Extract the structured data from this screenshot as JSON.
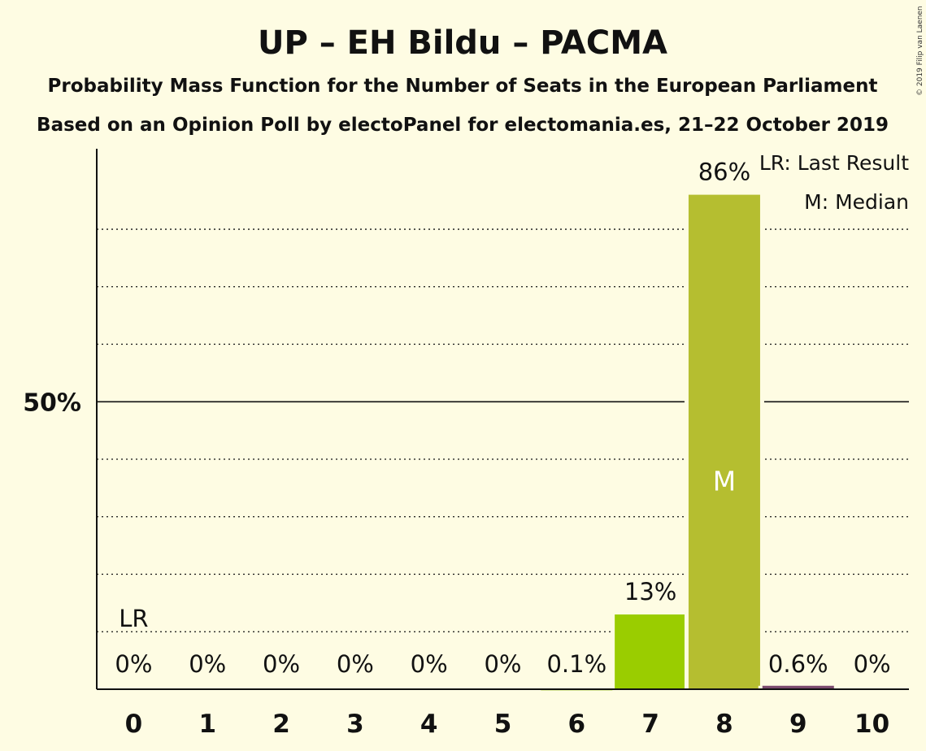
{
  "title": "UP – EH Bildu – PACMA",
  "subtitle1": "Probability Mass Function for the Number of Seats in the European Parliament",
  "subtitle2": "Based on an Opinion Poll by electoPanel for electomania.es, 21–22 October 2019",
  "copyright": "© 2019 Filip van Laenen",
  "legend": {
    "last_result": "LR: Last Result",
    "median": "M: Median"
  },
  "markers": {
    "last_result_label": "LR",
    "median_label": "M"
  },
  "colors": {
    "background": "#FEFCE3",
    "bar_7": "#9ACD00",
    "bar_8": "#B5BE30",
    "bar_9": "#7B4A6E"
  },
  "chart_data": {
    "type": "bar",
    "categories": [
      "0",
      "1",
      "2",
      "3",
      "4",
      "5",
      "6",
      "7",
      "8",
      "9",
      "10"
    ],
    "values": [
      0,
      0,
      0,
      0,
      0,
      0,
      0.1,
      13,
      86,
      0.6,
      0
    ],
    "value_labels": [
      "0%",
      "0%",
      "0%",
      "0%",
      "0%",
      "0%",
      "0.1%",
      "13%",
      "86%",
      "0.6%",
      "0%"
    ],
    "ylim": [
      0,
      94
    ],
    "y_ticks": [
      {
        "value": 50,
        "label": "50%"
      }
    ],
    "gridlines": [
      10,
      20,
      30,
      40,
      50,
      60,
      70,
      80
    ],
    "last_result": 0,
    "median": 8,
    "grid": true,
    "legend_position": "top-right"
  }
}
